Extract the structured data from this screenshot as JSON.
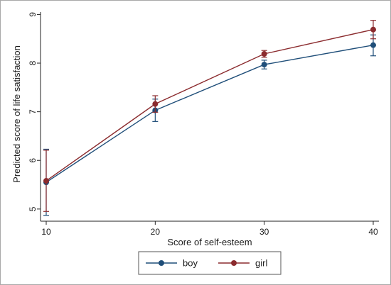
{
  "chart_data": {
    "type": "line",
    "xlabel": "Score of self-esteem",
    "ylabel": "Predicted score of life satisfaction",
    "xlim": [
      10,
      40
    ],
    "ylim": [
      4.75,
      9.05
    ],
    "x_ticks": [
      "10",
      "20",
      "30",
      "40"
    ],
    "y_ticks": [
      "5",
      "6",
      "7",
      "8",
      "9"
    ],
    "grid": false,
    "legend_position": "bottom",
    "x": [
      10,
      20,
      30,
      40
    ],
    "series": [
      {
        "name": "boy",
        "color": "#1f4e79",
        "values": [
          5.55,
          7.03,
          7.97,
          8.37
        ],
        "ci_low": [
          4.87,
          6.8,
          7.88,
          8.15
        ],
        "ci_high": [
          6.23,
          7.26,
          8.06,
          8.58
        ]
      },
      {
        "name": "girl",
        "color": "#8b2b2e",
        "values": [
          5.58,
          7.16,
          8.19,
          8.69
        ],
        "ci_low": [
          4.95,
          6.99,
          8.12,
          8.5
        ],
        "ci_high": [
          6.21,
          7.33,
          8.26,
          8.88
        ]
      }
    ]
  }
}
